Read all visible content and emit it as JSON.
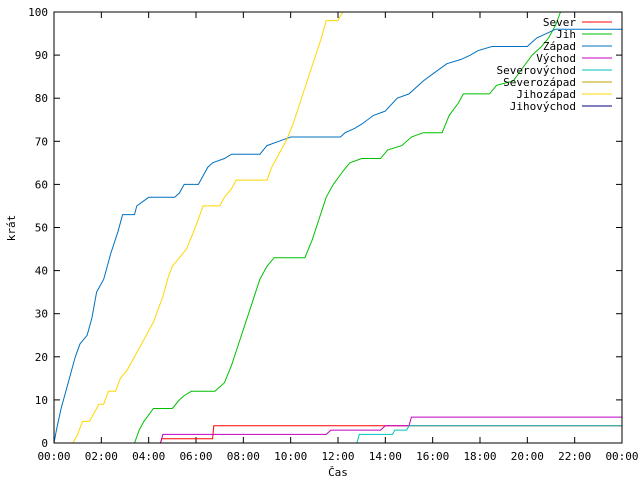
{
  "chart_data": {
    "type": "line",
    "xlabel": "Čas",
    "ylabel": "krát",
    "xlim": [
      0,
      24
    ],
    "ylim": [
      0,
      100
    ],
    "grid": false,
    "legend_position": "top-right",
    "x_ticks": [
      "00:00",
      "02:00",
      "04:00",
      "06:00",
      "08:00",
      "10:00",
      "12:00",
      "14:00",
      "16:00",
      "18:00",
      "20:00",
      "22:00",
      "00:00"
    ],
    "y_ticks": [
      0,
      10,
      20,
      30,
      40,
      50,
      60,
      70,
      80,
      90,
      100
    ],
    "series": [
      {
        "name": "Sever",
        "color": "#ff0000",
        "points": [
          [
            0,
            0
          ],
          [
            4.5,
            0
          ],
          [
            4.55,
            1
          ],
          [
            6.7,
            1
          ],
          [
            6.75,
            4
          ],
          [
            13.0,
            4
          ],
          [
            24,
            4
          ]
        ]
      },
      {
        "name": "Jih",
        "color": "#00c000",
        "points": [
          [
            0,
            0
          ],
          [
            3.4,
            0
          ],
          [
            3.6,
            3
          ],
          [
            3.8,
            5
          ],
          [
            4.2,
            8
          ],
          [
            5.0,
            8
          ],
          [
            5.3,
            10
          ],
          [
            5.5,
            11
          ],
          [
            5.8,
            12
          ],
          [
            6.8,
            12
          ],
          [
            7.2,
            14
          ],
          [
            7.5,
            18
          ],
          [
            7.8,
            23
          ],
          [
            8.1,
            28
          ],
          [
            8.4,
            33
          ],
          [
            8.7,
            38
          ],
          [
            9.0,
            41
          ],
          [
            9.3,
            43
          ],
          [
            10.6,
            43
          ],
          [
            10.9,
            47
          ],
          [
            11.2,
            52
          ],
          [
            11.5,
            57
          ],
          [
            11.8,
            60
          ],
          [
            12.2,
            63
          ],
          [
            12.5,
            65
          ],
          [
            13.0,
            66
          ],
          [
            13.8,
            66
          ],
          [
            14.1,
            68
          ],
          [
            14.7,
            69
          ],
          [
            15.1,
            71
          ],
          [
            15.6,
            72
          ],
          [
            16.4,
            72
          ],
          [
            16.7,
            76
          ],
          [
            17.1,
            79
          ],
          [
            17.3,
            81
          ],
          [
            18.4,
            81
          ],
          [
            18.7,
            83
          ],
          [
            19.4,
            84
          ],
          [
            19.8,
            87
          ],
          [
            20.2,
            90
          ],
          [
            20.6,
            92
          ],
          [
            20.9,
            94
          ],
          [
            21.2,
            97
          ],
          [
            21.4,
            100
          ]
        ]
      },
      {
        "name": "Západ",
        "color": "#0070c0",
        "points": [
          [
            0,
            0
          ],
          [
            0.1,
            3
          ],
          [
            0.3,
            8
          ],
          [
            0.6,
            14
          ],
          [
            0.9,
            20
          ],
          [
            1.1,
            23
          ],
          [
            1.4,
            25
          ],
          [
            1.6,
            29
          ],
          [
            1.8,
            35
          ],
          [
            2.1,
            38
          ],
          [
            2.4,
            44
          ],
          [
            2.7,
            49
          ],
          [
            2.9,
            53
          ],
          [
            3.4,
            53
          ],
          [
            3.5,
            55
          ],
          [
            4.0,
            57
          ],
          [
            5.1,
            57
          ],
          [
            5.3,
            58
          ],
          [
            5.5,
            60
          ],
          [
            6.1,
            60
          ],
          [
            6.3,
            62
          ],
          [
            6.5,
            64
          ],
          [
            6.7,
            65
          ],
          [
            7.2,
            66
          ],
          [
            7.5,
            67
          ],
          [
            8.7,
            67
          ],
          [
            9.0,
            69
          ],
          [
            9.5,
            70
          ],
          [
            10.0,
            71
          ],
          [
            12.1,
            71
          ],
          [
            12.3,
            72
          ],
          [
            12.7,
            73
          ],
          [
            13.0,
            74
          ],
          [
            13.5,
            76
          ],
          [
            14.0,
            77
          ],
          [
            14.5,
            80
          ],
          [
            15.0,
            81
          ],
          [
            15.6,
            84
          ],
          [
            16.1,
            86
          ],
          [
            16.6,
            88
          ],
          [
            17.2,
            89
          ],
          [
            17.6,
            90
          ],
          [
            17.9,
            91
          ],
          [
            18.5,
            92
          ],
          [
            20.0,
            92
          ],
          [
            20.4,
            94
          ],
          [
            20.8,
            95
          ],
          [
            21.2,
            96
          ],
          [
            24,
            96
          ]
        ]
      },
      {
        "name": "Východ",
        "color": "#c000c0",
        "points": [
          [
            0,
            0
          ],
          [
            4.5,
            0
          ],
          [
            4.6,
            2
          ],
          [
            11.5,
            2
          ],
          [
            11.7,
            3
          ],
          [
            13.8,
            3
          ],
          [
            14.0,
            4
          ],
          [
            15.0,
            4
          ],
          [
            15.1,
            6
          ],
          [
            24,
            6
          ]
        ]
      },
      {
        "name": "Severovýchod",
        "color": "#00c0c0",
        "points": [
          [
            0,
            0
          ],
          [
            12.8,
            0
          ],
          [
            12.9,
            2
          ],
          [
            14.3,
            2
          ],
          [
            14.4,
            3
          ],
          [
            14.9,
            3
          ],
          [
            15.0,
            4
          ],
          [
            24,
            4
          ]
        ]
      },
      {
        "name": "Severozápad",
        "color": "#c0a000",
        "points": [
          [
            0,
            0
          ],
          [
            24,
            0
          ]
        ]
      },
      {
        "name": "Jihozápad",
        "color": "#ffd700",
        "points": [
          [
            0,
            0
          ],
          [
            0.8,
            0
          ],
          [
            1.0,
            2
          ],
          [
            1.2,
            5
          ],
          [
            1.5,
            5
          ],
          [
            1.7,
            7
          ],
          [
            1.9,
            9
          ],
          [
            2.1,
            9
          ],
          [
            2.3,
            12
          ],
          [
            2.6,
            12
          ],
          [
            2.8,
            15
          ],
          [
            3.1,
            17
          ],
          [
            3.4,
            20
          ],
          [
            3.6,
            22
          ],
          [
            3.9,
            25
          ],
          [
            4.2,
            28
          ],
          [
            4.4,
            31
          ],
          [
            4.6,
            34
          ],
          [
            4.8,
            38
          ],
          [
            5.0,
            41
          ],
          [
            5.3,
            43
          ],
          [
            5.6,
            45
          ],
          [
            5.9,
            49
          ],
          [
            6.1,
            52
          ],
          [
            6.3,
            55
          ],
          [
            7.0,
            55
          ],
          [
            7.2,
            57
          ],
          [
            7.5,
            59
          ],
          [
            7.7,
            61
          ],
          [
            9.0,
            61
          ],
          [
            9.2,
            64
          ],
          [
            9.5,
            67
          ],
          [
            9.8,
            70
          ],
          [
            10.1,
            74
          ],
          [
            10.4,
            79
          ],
          [
            10.7,
            84
          ],
          [
            11.0,
            89
          ],
          [
            11.3,
            94
          ],
          [
            11.5,
            98
          ],
          [
            12.0,
            98
          ],
          [
            12.2,
            100
          ]
        ]
      },
      {
        "name": "Jihovýchod",
        "color": "#000080",
        "points": [
          [
            0,
            0
          ],
          [
            24,
            0
          ]
        ]
      }
    ]
  }
}
